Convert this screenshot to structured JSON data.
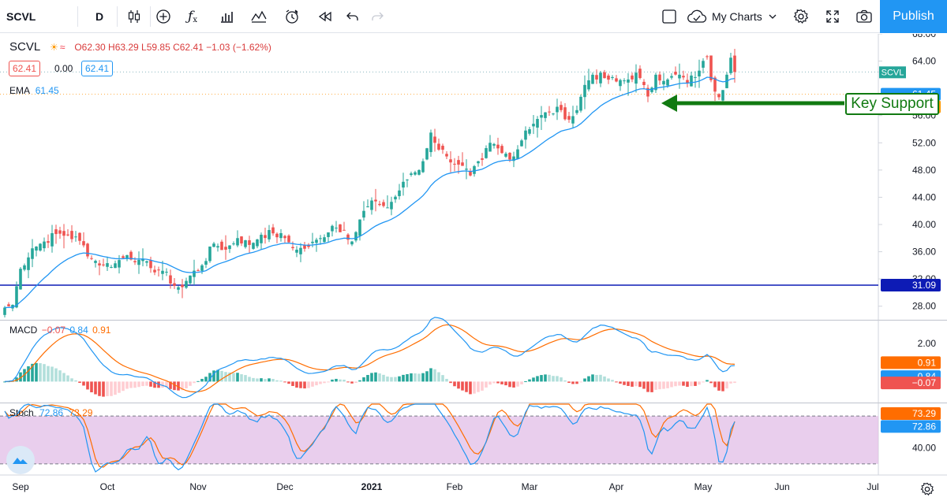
{
  "toolbar": {
    "symbol": "SCVL",
    "interval": "D",
    "layout_name": "My Charts",
    "publish_label": "Publish"
  },
  "legend": {
    "symbol": "SCVL",
    "ohlc": "O62.30 H63.29 L59.85 C62.41 −1.03 (−1.62%)",
    "bid": "62.41",
    "spread": "0.00",
    "ask": "62.41",
    "ema_label": "EMA",
    "ema_value": "61.45",
    "macd_label": "MACD",
    "macd_hist": "−0.07",
    "macd_line": "0.84",
    "macd_signal": "0.91",
    "stoch_label": "Stoch",
    "stoch_k": "72.86",
    "stoch_d": "73.29"
  },
  "annotation": {
    "text": "Key Support",
    "arrow_color": "#117a11"
  },
  "colors": {
    "up": "#26a69a",
    "down": "#ef5350",
    "ema": "#2196f3",
    "macd_line": "#2196f3",
    "macd_signal": "#ff6d00",
    "stoch_k": "#2196f3",
    "stoch_d": "#ff6d00",
    "stoch_band": "#e1bee7",
    "support_line": "#0d1bb5"
  },
  "chart_data": [
    {
      "type": "candlestick",
      "ylim": [
        26,
        68
      ],
      "yticks": [
        28,
        32,
        36,
        40,
        44,
        48,
        52,
        56,
        64,
        68
      ],
      "price_labels": [
        {
          "text": "SCVL",
          "value": 62.41
        },
        {
          "text": "61.45",
          "value": 61.45
        },
        {
          "text": "31.09",
          "value": 31.09
        }
      ],
      "support_level": 31.09,
      "x_labels": [
        "Sep",
        "Oct",
        "Nov",
        "Dec",
        "2021",
        "Feb",
        "Mar",
        "Apr",
        "May",
        "Jun",
        "Jul"
      ],
      "close_anchors": [
        [
          0,
          27.8
        ],
        [
          2,
          28.2
        ],
        [
          4,
          33.5
        ],
        [
          7,
          36.5
        ],
        [
          10,
          37.5
        ],
        [
          13,
          38.6
        ],
        [
          16,
          38.4
        ],
        [
          19,
          37.6
        ],
        [
          22,
          35.0
        ],
        [
          25,
          34.0
        ],
        [
          28,
          34.3
        ],
        [
          31,
          35.5
        ],
        [
          34,
          34.8
        ],
        [
          37,
          33.6
        ],
        [
          40,
          33.2
        ],
        [
          43,
          31.0
        ],
        [
          45,
          30.8
        ],
        [
          47,
          32.5
        ],
        [
          50,
          34.0
        ],
        [
          53,
          37.2
        ],
        [
          56,
          36.3
        ],
        [
          59,
          38.0
        ],
        [
          62,
          37.0
        ],
        [
          65,
          38.5
        ],
        [
          68,
          38.7
        ],
        [
          71,
          38.0
        ],
        [
          74,
          36.3
        ],
        [
          77,
          36.7
        ],
        [
          80,
          38.0
        ],
        [
          83,
          39.8
        ],
        [
          86,
          39.2
        ],
        [
          88,
          37.5
        ],
        [
          91,
          42.0
        ],
        [
          94,
          43.4
        ],
        [
          97,
          42.5
        ],
        [
          100,
          45.0
        ],
        [
          103,
          47.5
        ],
        [
          105,
          48.0
        ],
        [
          107,
          51.2
        ],
        [
          108,
          53.5
        ],
        [
          109,
          52.0
        ],
        [
          112,
          50.0
        ],
        [
          115,
          48.8
        ],
        [
          118,
          47.2
        ],
        [
          121,
          49.5
        ],
        [
          123,
          52.0
        ],
        [
          126,
          50.5
        ],
        [
          129,
          50.0
        ],
        [
          132,
          53.8
        ],
        [
          135,
          55.5
        ],
        [
          138,
          56.5
        ],
        [
          141,
          56.8
        ],
        [
          143,
          55.4
        ],
        [
          145,
          56.8
        ],
        [
          147,
          60.5
        ],
        [
          149,
          62.0
        ],
        [
          152,
          61.5
        ],
        [
          155,
          61.0
        ],
        [
          158,
          61.3
        ],
        [
          160,
          62.3
        ],
        [
          163,
          58.8
        ],
        [
          165,
          62.0
        ],
        [
          168,
          61.3
        ],
        [
          171,
          62.0
        ],
        [
          173,
          60.8
        ],
        [
          176,
          62.6
        ],
        [
          178,
          64.6
        ],
        [
          179,
          61.2
        ],
        [
          181,
          58.7
        ],
        [
          183,
          62.0
        ],
        [
          184,
          64.5
        ],
        [
          185,
          62.41
        ]
      ],
      "ema_period": 20,
      "ema_last": 61.45
    },
    {
      "type": "macd",
      "ylim": [
        -1.1,
        3.2
      ],
      "yticks": [
        2.0
      ],
      "macd_line": 0.84,
      "signal": 0.91,
      "histogram": -0.07
    },
    {
      "type": "stochastic",
      "ylim": [
        10,
        95
      ],
      "yticks": [
        40.0
      ],
      "band": [
        20,
        80
      ],
      "k": 72.86,
      "d": 73.29
    }
  ]
}
